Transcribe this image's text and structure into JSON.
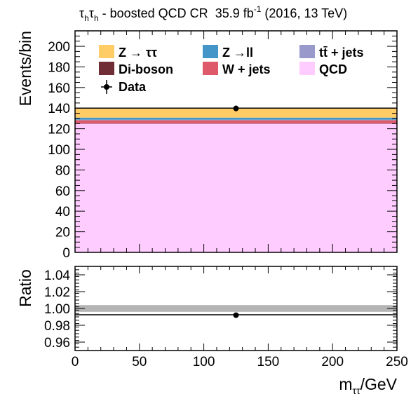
{
  "chart_data": [
    {
      "panel": "main",
      "type": "bar",
      "stacked": true,
      "header": {
        "channel_tau": "τ",
        "channel_sub": "h",
        "region": " - boosted QCD CR",
        "lumi": "35.9 fb",
        "lumi_sup": "-1",
        "conditions": " (2016, 13 TeV)"
      },
      "ylabel": "Events/bin",
      "xlim": [
        0,
        250
      ],
      "ylim": [
        0,
        215
      ],
      "yticks": [
        0,
        20,
        40,
        60,
        80,
        100,
        120,
        140,
        160,
        180,
        200
      ],
      "bin": [
        0,
        250
      ],
      "series": [
        {
          "name": "QCD",
          "key": "qcd",
          "color": "#ffccff",
          "value": 124.9
        },
        {
          "name": "Di-boson",
          "key": "diboson",
          "color": "#6f2d35",
          "value": 0.3
        },
        {
          "name": "W + jets",
          "key": "wjets",
          "color": "#de5a6a",
          "value": 3.0
        },
        {
          "name": "tt̄ + jets",
          "key": "ttbar",
          "color": "#9999cc",
          "value": 0.6
        },
        {
          "name": "Z → ll",
          "key": "zll",
          "color": "#4496c8",
          "value": 2.0
        },
        {
          "name": "Z → ττ",
          "key": "ztt",
          "color": "#ffcc66",
          "value": 9.2
        }
      ],
      "legend_labels": {
        "ztt": "Z → ττ",
        "zll": "Z →ll",
        "ttbar": "tt̄ + jets",
        "diboson": "Di-boson",
        "wjets": "W + jets",
        "qcd": "QCD",
        "data": "Data"
      },
      "legend_position": "top",
      "data": {
        "name": "Data",
        "x": 125,
        "y": 139.7,
        "yerr": 0.8
      }
    },
    {
      "panel": "ratio",
      "type": "scatter",
      "ylabel": "Ratio",
      "xlabel": "m",
      "xlabel_sub": "ττ",
      "xlabel_unit": "/GeV",
      "xlim": [
        0,
        250
      ],
      "ylim": [
        0.95,
        1.05
      ],
      "yticks": [
        0.96,
        0.98,
        1.0,
        1.02,
        1.04
      ],
      "ytick_labels": [
        "0.96",
        "0.98",
        "1.00",
        "1.02",
        "1.04"
      ],
      "xticks": [
        0,
        50,
        100,
        150,
        200,
        250
      ],
      "xtick_labels": [
        "0",
        "50",
        "100",
        "150",
        "200",
        "250"
      ],
      "uncertainty_band": [
        0.996,
        1.004
      ],
      "reference_line": 0.9925,
      "points": [
        {
          "x": 125,
          "y": 0.992,
          "yerr": 0.003
        }
      ]
    }
  ],
  "colors": {
    "band": "#b4b4b4",
    "frame": "#000000"
  }
}
